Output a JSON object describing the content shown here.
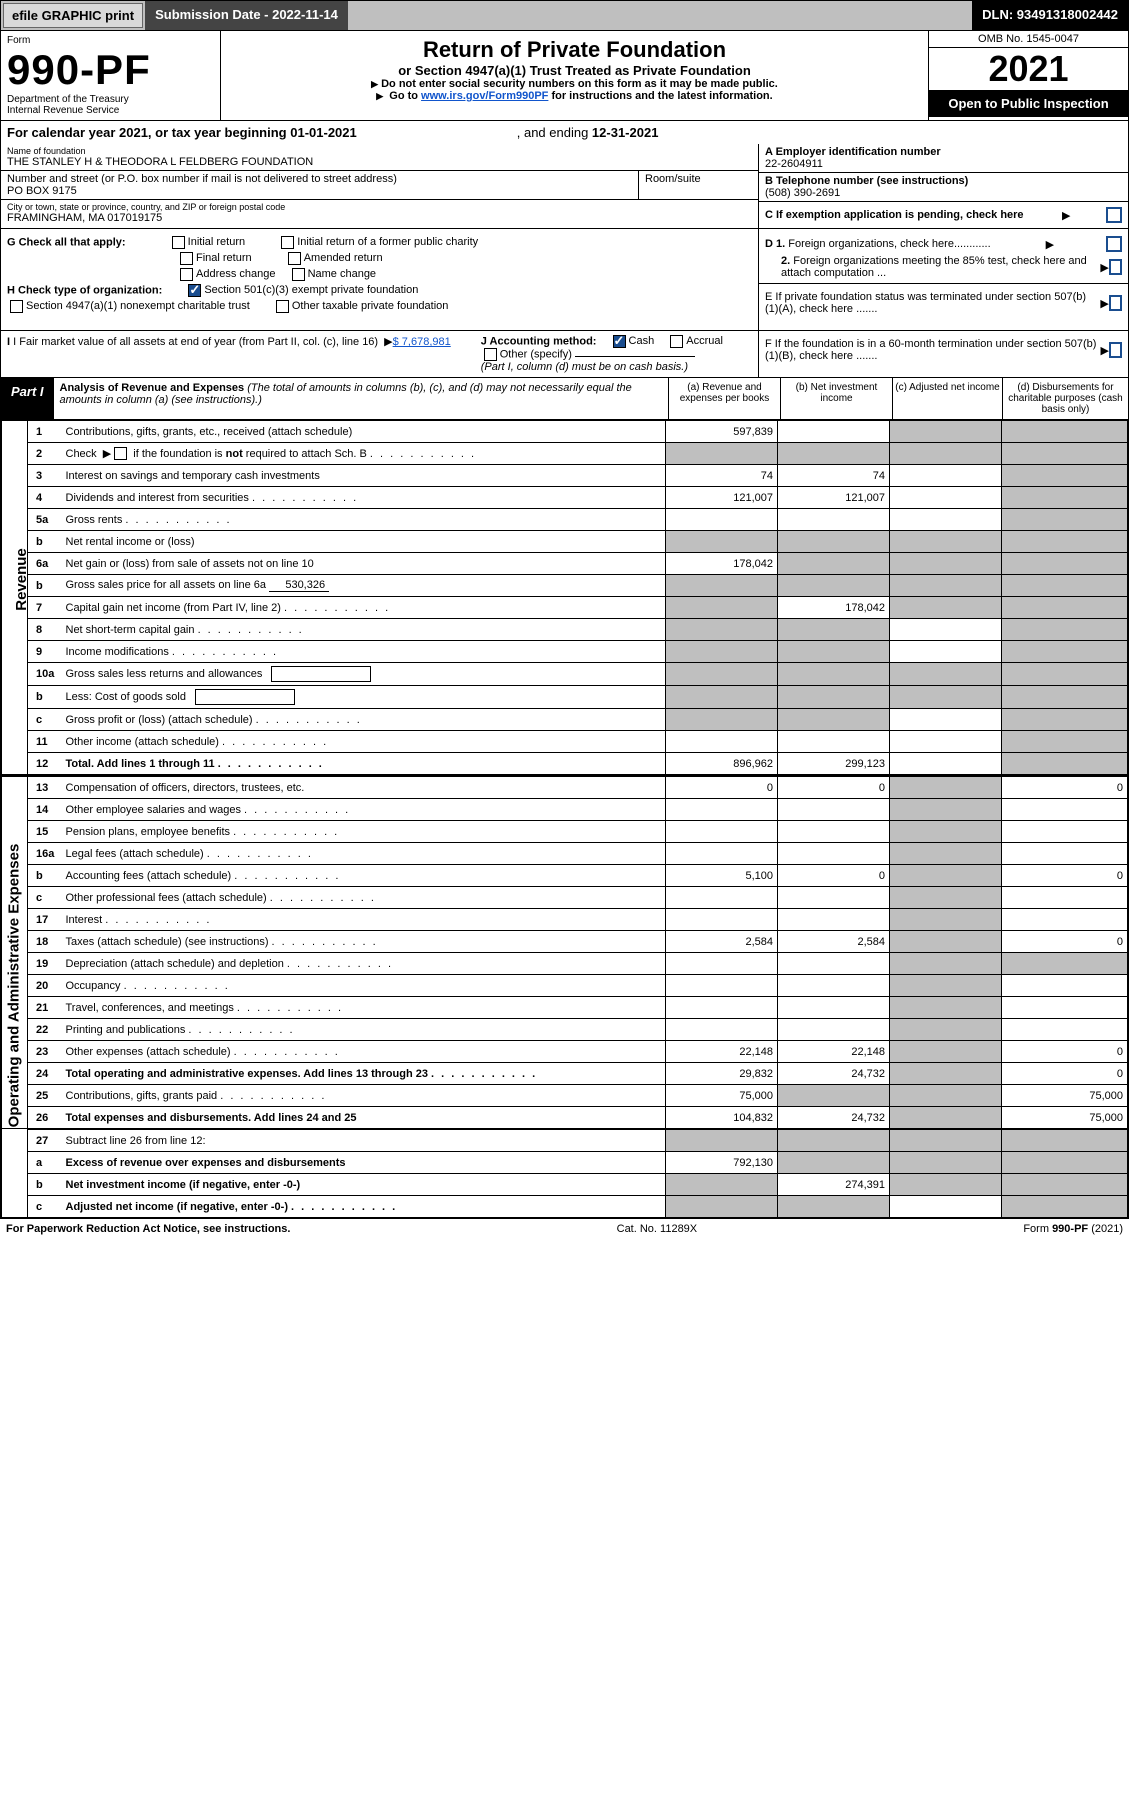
{
  "toolbar": {
    "efile": "efile GRAPHIC print",
    "subm_lbl": "Submission Date - 2022-11-14",
    "dln": "DLN: 93491318002442"
  },
  "hdr": {
    "form_word": "Form",
    "form_no": "990-PF",
    "dept": "Department of the Treasury",
    "irs": "Internal Revenue Service",
    "title": "Return of Private Foundation",
    "subtitle": "or Section 4947(a)(1) Trust Treated as Private Foundation",
    "note1": "Do not enter social security numbers on this form as it may be made public.",
    "note2_pre": "Go to ",
    "note2_link": "www.irs.gov/Form990PF",
    "note2_post": " for instructions and the latest information.",
    "omb": "OMB No. 1545-0047",
    "year": "2021",
    "open": "Open to Public Inspection"
  },
  "cy": {
    "pre": "For calendar year 2021, or tax year beginning ",
    "b": "01-01-2021",
    "mid": ", and ending ",
    "e": "12-31-2021"
  },
  "info": {
    "name_lbl": "Name of foundation",
    "name": "THE STANLEY H & THEODORA L FELDBERG FOUNDATION",
    "addr_lbl": "Number and street (or P.O. box number if mail is not delivered to street address)",
    "addr": "PO BOX 9175",
    "room_lbl": "Room/suite",
    "city_lbl": "City or town, state or province, country, and ZIP or foreign postal code",
    "city": "FRAMINGHAM, MA  017019175",
    "ein_lbl": "A Employer identification number",
    "ein": "22-2604911",
    "tel_lbl": "B Telephone number (see instructions)",
    "tel": "(508) 390-2691",
    "c": "C If exemption application is pending, check here"
  },
  "checks": {
    "g_lbl": "G Check all that apply:",
    "g_opts": [
      "Initial return",
      "Initial return of a former public charity",
      "Final return",
      "Amended return",
      "Address change",
      "Name change"
    ],
    "h_lbl": "H Check type of organization:",
    "h1": "Section 501(c)(3) exempt private foundation",
    "h2": "Section 4947(a)(1) nonexempt charitable trust",
    "h3": "Other taxable private foundation",
    "d1": "D 1. Foreign organizations, check here",
    "d2": "2. Foreign organizations meeting the 85% test, check here and attach computation ...",
    "e": "E  If private foundation status was terminated under section 507(b)(1)(A), check here .......",
    "f": "F  If the foundation is in a 60-month termination under section 507(b)(1)(B), check here ......."
  },
  "ij": {
    "i_lbl": "I Fair market value of all assets at end of year (from Part II, col. (c), line 16)",
    "i_val": "$  7,678,981",
    "j_lbl": "J Accounting method:",
    "j_cash": "Cash",
    "j_acc": "Accrual",
    "j_other": "Other (specify)",
    "j_note": "(Part I, column (d) must be on cash basis.)"
  },
  "part1": {
    "tag": "Part I",
    "title_b": "Analysis of Revenue and Expenses",
    "title_i": " (The total of amounts in columns (b), (c), and (d) may not necessarily equal the amounts in column (a) (see instructions).)",
    "colA": "(a)    Revenue and expenses per books",
    "colB": "(b)    Net investment income",
    "colC": "(c)    Adjusted net income",
    "colD": "(d)    Disbursements for charitable purposes (cash basis only)"
  },
  "side": {
    "rev": "Revenue",
    "exp": "Operating and Administrative Expenses"
  },
  "rows": {
    "r1": {
      "n": "1",
      "d": "Contributions, gifts, grants, etc., received (attach schedule)",
      "a": "597,839",
      "b": "",
      "c": "g",
      "dd": "g"
    },
    "r2": {
      "n": "2",
      "d_pre": "Check ",
      "d_post": " if the foundation is not required to attach Sch. B",
      "a": "g",
      "b": "g",
      "c": "g",
      "dd": "g"
    },
    "r3": {
      "n": "3",
      "d": "Interest on savings and temporary cash investments",
      "a": "74",
      "b": "74",
      "c": "",
      "dd": "g"
    },
    "r4": {
      "n": "4",
      "d": "Dividends and interest from securities",
      "a": "121,007",
      "b": "121,007",
      "c": "",
      "dd": "g"
    },
    "r5a": {
      "n": "5a",
      "d": "Gross rents",
      "a": "",
      "b": "",
      "c": "",
      "dd": "g"
    },
    "r5b": {
      "n": "b",
      "d": "Net rental income or (loss)",
      "a": "g",
      "b": "g",
      "c": "g",
      "dd": "g"
    },
    "r6a": {
      "n": "6a",
      "d": "Net gain or (loss) from sale of assets not on line 10",
      "a": "178,042",
      "b": "g",
      "c": "g",
      "dd": "g"
    },
    "r6b": {
      "n": "b",
      "d": "Gross sales price for all assets on line 6a",
      "iv": "530,326",
      "a": "g",
      "b": "g",
      "c": "g",
      "dd": "g"
    },
    "r7": {
      "n": "7",
      "d": "Capital gain net income (from Part IV, line 2)",
      "a": "g",
      "b": "178,042",
      "c": "g",
      "dd": "g"
    },
    "r8": {
      "n": "8",
      "d": "Net short-term capital gain",
      "a": "g",
      "b": "g",
      "c": "",
      "dd": "g"
    },
    "r9": {
      "n": "9",
      "d": "Income modifications",
      "a": "g",
      "b": "g",
      "c": "",
      "dd": "g"
    },
    "r10a": {
      "n": "10a",
      "d": "Gross sales less returns and allowances",
      "a": "g",
      "b": "g",
      "c": "g",
      "dd": "g"
    },
    "r10b": {
      "n": "b",
      "d": "Less: Cost of goods sold",
      "a": "g",
      "b": "g",
      "c": "g",
      "dd": "g"
    },
    "r10c": {
      "n": "c",
      "d": "Gross profit or (loss) (attach schedule)",
      "a": "g",
      "b": "g",
      "c": "",
      "dd": "g"
    },
    "r11": {
      "n": "11",
      "d": "Other income (attach schedule)",
      "a": "",
      "b": "",
      "c": "",
      "dd": "g"
    },
    "r12": {
      "n": "12",
      "d": "Total. Add lines 1 through 11",
      "a": "896,962",
      "b": "299,123",
      "c": "",
      "dd": "g",
      "bold": true
    },
    "r13": {
      "n": "13",
      "d": "Compensation of officers, directors, trustees, etc.",
      "a": "0",
      "b": "0",
      "c": "g",
      "dd": "0"
    },
    "r14": {
      "n": "14",
      "d": "Other employee salaries and wages",
      "a": "",
      "b": "",
      "c": "g",
      "dd": ""
    },
    "r15": {
      "n": "15",
      "d": "Pension plans, employee benefits",
      "a": "",
      "b": "",
      "c": "g",
      "dd": ""
    },
    "r16a": {
      "n": "16a",
      "d": "Legal fees (attach schedule)",
      "a": "",
      "b": "",
      "c": "g",
      "dd": ""
    },
    "r16b": {
      "n": "b",
      "d": "Accounting fees (attach schedule)",
      "a": "5,100",
      "b": "0",
      "c": "g",
      "dd": "0"
    },
    "r16c": {
      "n": "c",
      "d": "Other professional fees (attach schedule)",
      "a": "",
      "b": "",
      "c": "g",
      "dd": ""
    },
    "r17": {
      "n": "17",
      "d": "Interest",
      "a": "",
      "b": "",
      "c": "g",
      "dd": ""
    },
    "r18": {
      "n": "18",
      "d": "Taxes (attach schedule) (see instructions)",
      "a": "2,584",
      "b": "2,584",
      "c": "g",
      "dd": "0"
    },
    "r19": {
      "n": "19",
      "d": "Depreciation (attach schedule) and depletion",
      "a": "",
      "b": "",
      "c": "g",
      "dd": "g"
    },
    "r20": {
      "n": "20",
      "d": "Occupancy",
      "a": "",
      "b": "",
      "c": "g",
      "dd": ""
    },
    "r21": {
      "n": "21",
      "d": "Travel, conferences, and meetings",
      "a": "",
      "b": "",
      "c": "g",
      "dd": ""
    },
    "r22": {
      "n": "22",
      "d": "Printing and publications",
      "a": "",
      "b": "",
      "c": "g",
      "dd": ""
    },
    "r23": {
      "n": "23",
      "d": "Other expenses (attach schedule)",
      "a": "22,148",
      "b": "22,148",
      "c": "g",
      "dd": "0"
    },
    "r24": {
      "n": "24",
      "d": "Total operating and administrative expenses. Add lines 13 through 23",
      "a": "29,832",
      "b": "24,732",
      "c": "g",
      "dd": "0",
      "bold": true
    },
    "r25": {
      "n": "25",
      "d": "Contributions, gifts, grants paid",
      "a": "75,000",
      "b": "g",
      "c": "g",
      "dd": "75,000"
    },
    "r26": {
      "n": "26",
      "d": "Total expenses and disbursements. Add lines 24 and 25",
      "a": "104,832",
      "b": "24,732",
      "c": "g",
      "dd": "75,000",
      "bold": true
    },
    "r27": {
      "n": "27",
      "d": "Subtract line 26 from line 12:",
      "a": "g",
      "b": "g",
      "c": "g",
      "dd": "g"
    },
    "r27a": {
      "n": "a",
      "d": "Excess of revenue over expenses and disbursements",
      "a": "792,130",
      "b": "g",
      "c": "g",
      "dd": "g",
      "bold": true
    },
    "r27b": {
      "n": "b",
      "d": "Net investment income (if negative, enter -0-)",
      "a": "g",
      "b": "274,391",
      "c": "g",
      "dd": "g",
      "bold": true
    },
    "r27c": {
      "n": "c",
      "d": "Adjusted net income (if negative, enter -0-)",
      "a": "g",
      "b": "g",
      "c": "",
      "dd": "g",
      "bold": true
    }
  },
  "footer": {
    "l": "For Paperwork Reduction Act Notice, see instructions.",
    "m": "Cat. No. 11289X",
    "r": "Form 990-PF (2021)"
  }
}
